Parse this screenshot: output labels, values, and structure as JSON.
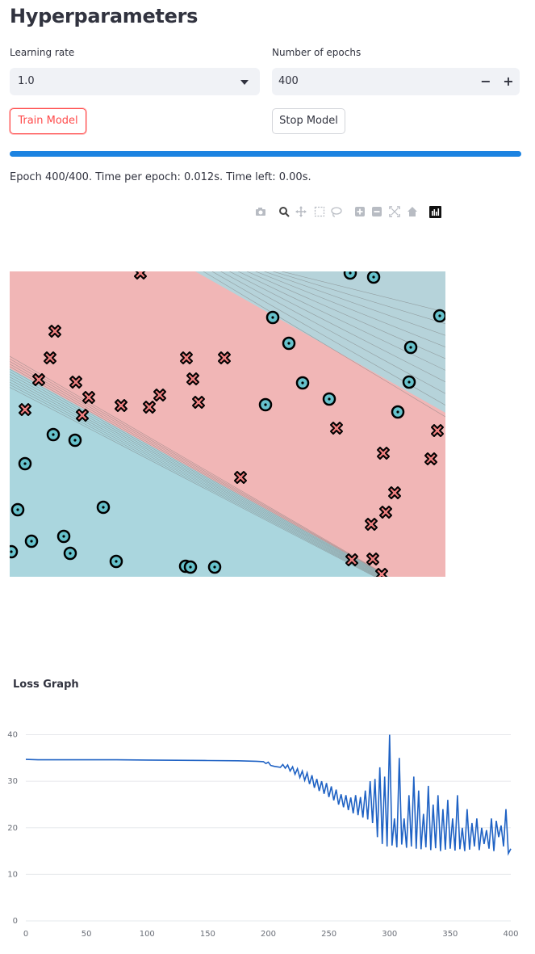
{
  "page": {
    "title": "Hyperparameters"
  },
  "hyperparams": {
    "learning_rate_label": "Learning rate",
    "learning_rate_value": "1.0",
    "epochs_label": "Number of epochs",
    "epochs_value": "400",
    "decrement": "−",
    "increment": "+"
  },
  "buttons": {
    "train": "Train Model",
    "stop": "Stop Model"
  },
  "progress": {
    "fraction": 1.0,
    "status": "Epoch 400/400. Time per epoch: 0.012s. Time left: 0.00s."
  },
  "toolbar": {
    "icons": [
      "camera-icon",
      "zoom-icon",
      "pan-icon",
      "box-select-icon",
      "lasso-select-icon",
      "zoom-in-icon",
      "zoom-out-icon",
      "autoscale-icon",
      "reset-axes-icon",
      "plotly-logo-icon"
    ]
  },
  "decision_plot": {
    "colors": {
      "class_x": "#f1b6b6",
      "class_o": "#aad6de",
      "marker_x": "#f08080",
      "marker_o": "#66c2cc",
      "contour": "#7a7a7a"
    }
  },
  "chart_data": {
    "type": "line",
    "title": "Loss Graph",
    "xlabel": "",
    "ylabel": "",
    "xlim": [
      0,
      400
    ],
    "ylim": [
      0,
      42
    ],
    "x_ticks": [
      "0",
      "50",
      "100",
      "150",
      "200",
      "250",
      "300",
      "350",
      "400"
    ],
    "y_ticks": [
      "0",
      "10",
      "20",
      "30",
      "40"
    ],
    "grid": true,
    "line_color": "#1f62c4",
    "series": [
      {
        "x": [
          0,
          10,
          25,
          50,
          75,
          100,
          125,
          150,
          175,
          190,
          196,
          198,
          200,
          202,
          205,
          210,
          212,
          214,
          216,
          218,
          220,
          222,
          224,
          226,
          228,
          230,
          232,
          234,
          236,
          238,
          240,
          242,
          244,
          246,
          248,
          250,
          252,
          254,
          256,
          258,
          260,
          262,
          264,
          266,
          268,
          270,
          272,
          274,
          276,
          278,
          280,
          282,
          284,
          286,
          288,
          290,
          292,
          294,
          296,
          298,
          300,
          302,
          304,
          306,
          308,
          310,
          312,
          314,
          316,
          318,
          320,
          322,
          324,
          326,
          328,
          330,
          332,
          334,
          336,
          338,
          340,
          342,
          344,
          346,
          348,
          350,
          352,
          354,
          356,
          358,
          360,
          362,
          364,
          366,
          368,
          370,
          372,
          374,
          376,
          378,
          380,
          382,
          384,
          386,
          388,
          390,
          392,
          394,
          396,
          398,
          400
        ],
        "y": [
          34.7,
          34.6,
          34.6,
          34.6,
          34.6,
          34.55,
          34.5,
          34.45,
          34.4,
          34.3,
          34.2,
          33.8,
          34.1,
          33.4,
          33.2,
          33.0,
          33.6,
          32.8,
          33.5,
          32.2,
          33.1,
          31.5,
          32.7,
          30.8,
          32.2,
          30.2,
          31.8,
          29.4,
          31.3,
          28.6,
          30.5,
          27.9,
          30.0,
          27.3,
          29.6,
          26.6,
          28.9,
          25.9,
          28.2,
          25.0,
          27.2,
          24.4,
          27.0,
          23.8,
          26.5,
          23.1,
          27.0,
          22.7,
          26.6,
          22.2,
          28.0,
          21.8,
          30.0,
          21.0,
          30.5,
          18.0,
          33.0,
          16.5,
          31.0,
          16.0,
          40.0,
          16.2,
          22.0,
          15.8,
          35.0,
          16.4,
          22.0,
          15.7,
          27.0,
          16.0,
          31.0,
          15.5,
          28.0,
          15.4,
          23.0,
          15.8,
          29.0,
          15.2,
          25.0,
          15.6,
          27.0,
          15.0,
          24.0,
          15.3,
          26.0,
          15.5,
          22.0,
          15.1,
          27.0,
          15.4,
          20.0,
          15.0,
          24.0,
          15.3,
          21.0,
          16.0,
          22.0,
          15.2,
          20.0,
          16.5,
          19.5,
          15.5,
          22.0,
          15.0,
          21.5,
          18.0,
          20.5,
          16.0,
          24.0,
          14.5,
          15.5
        ]
      }
    ]
  }
}
